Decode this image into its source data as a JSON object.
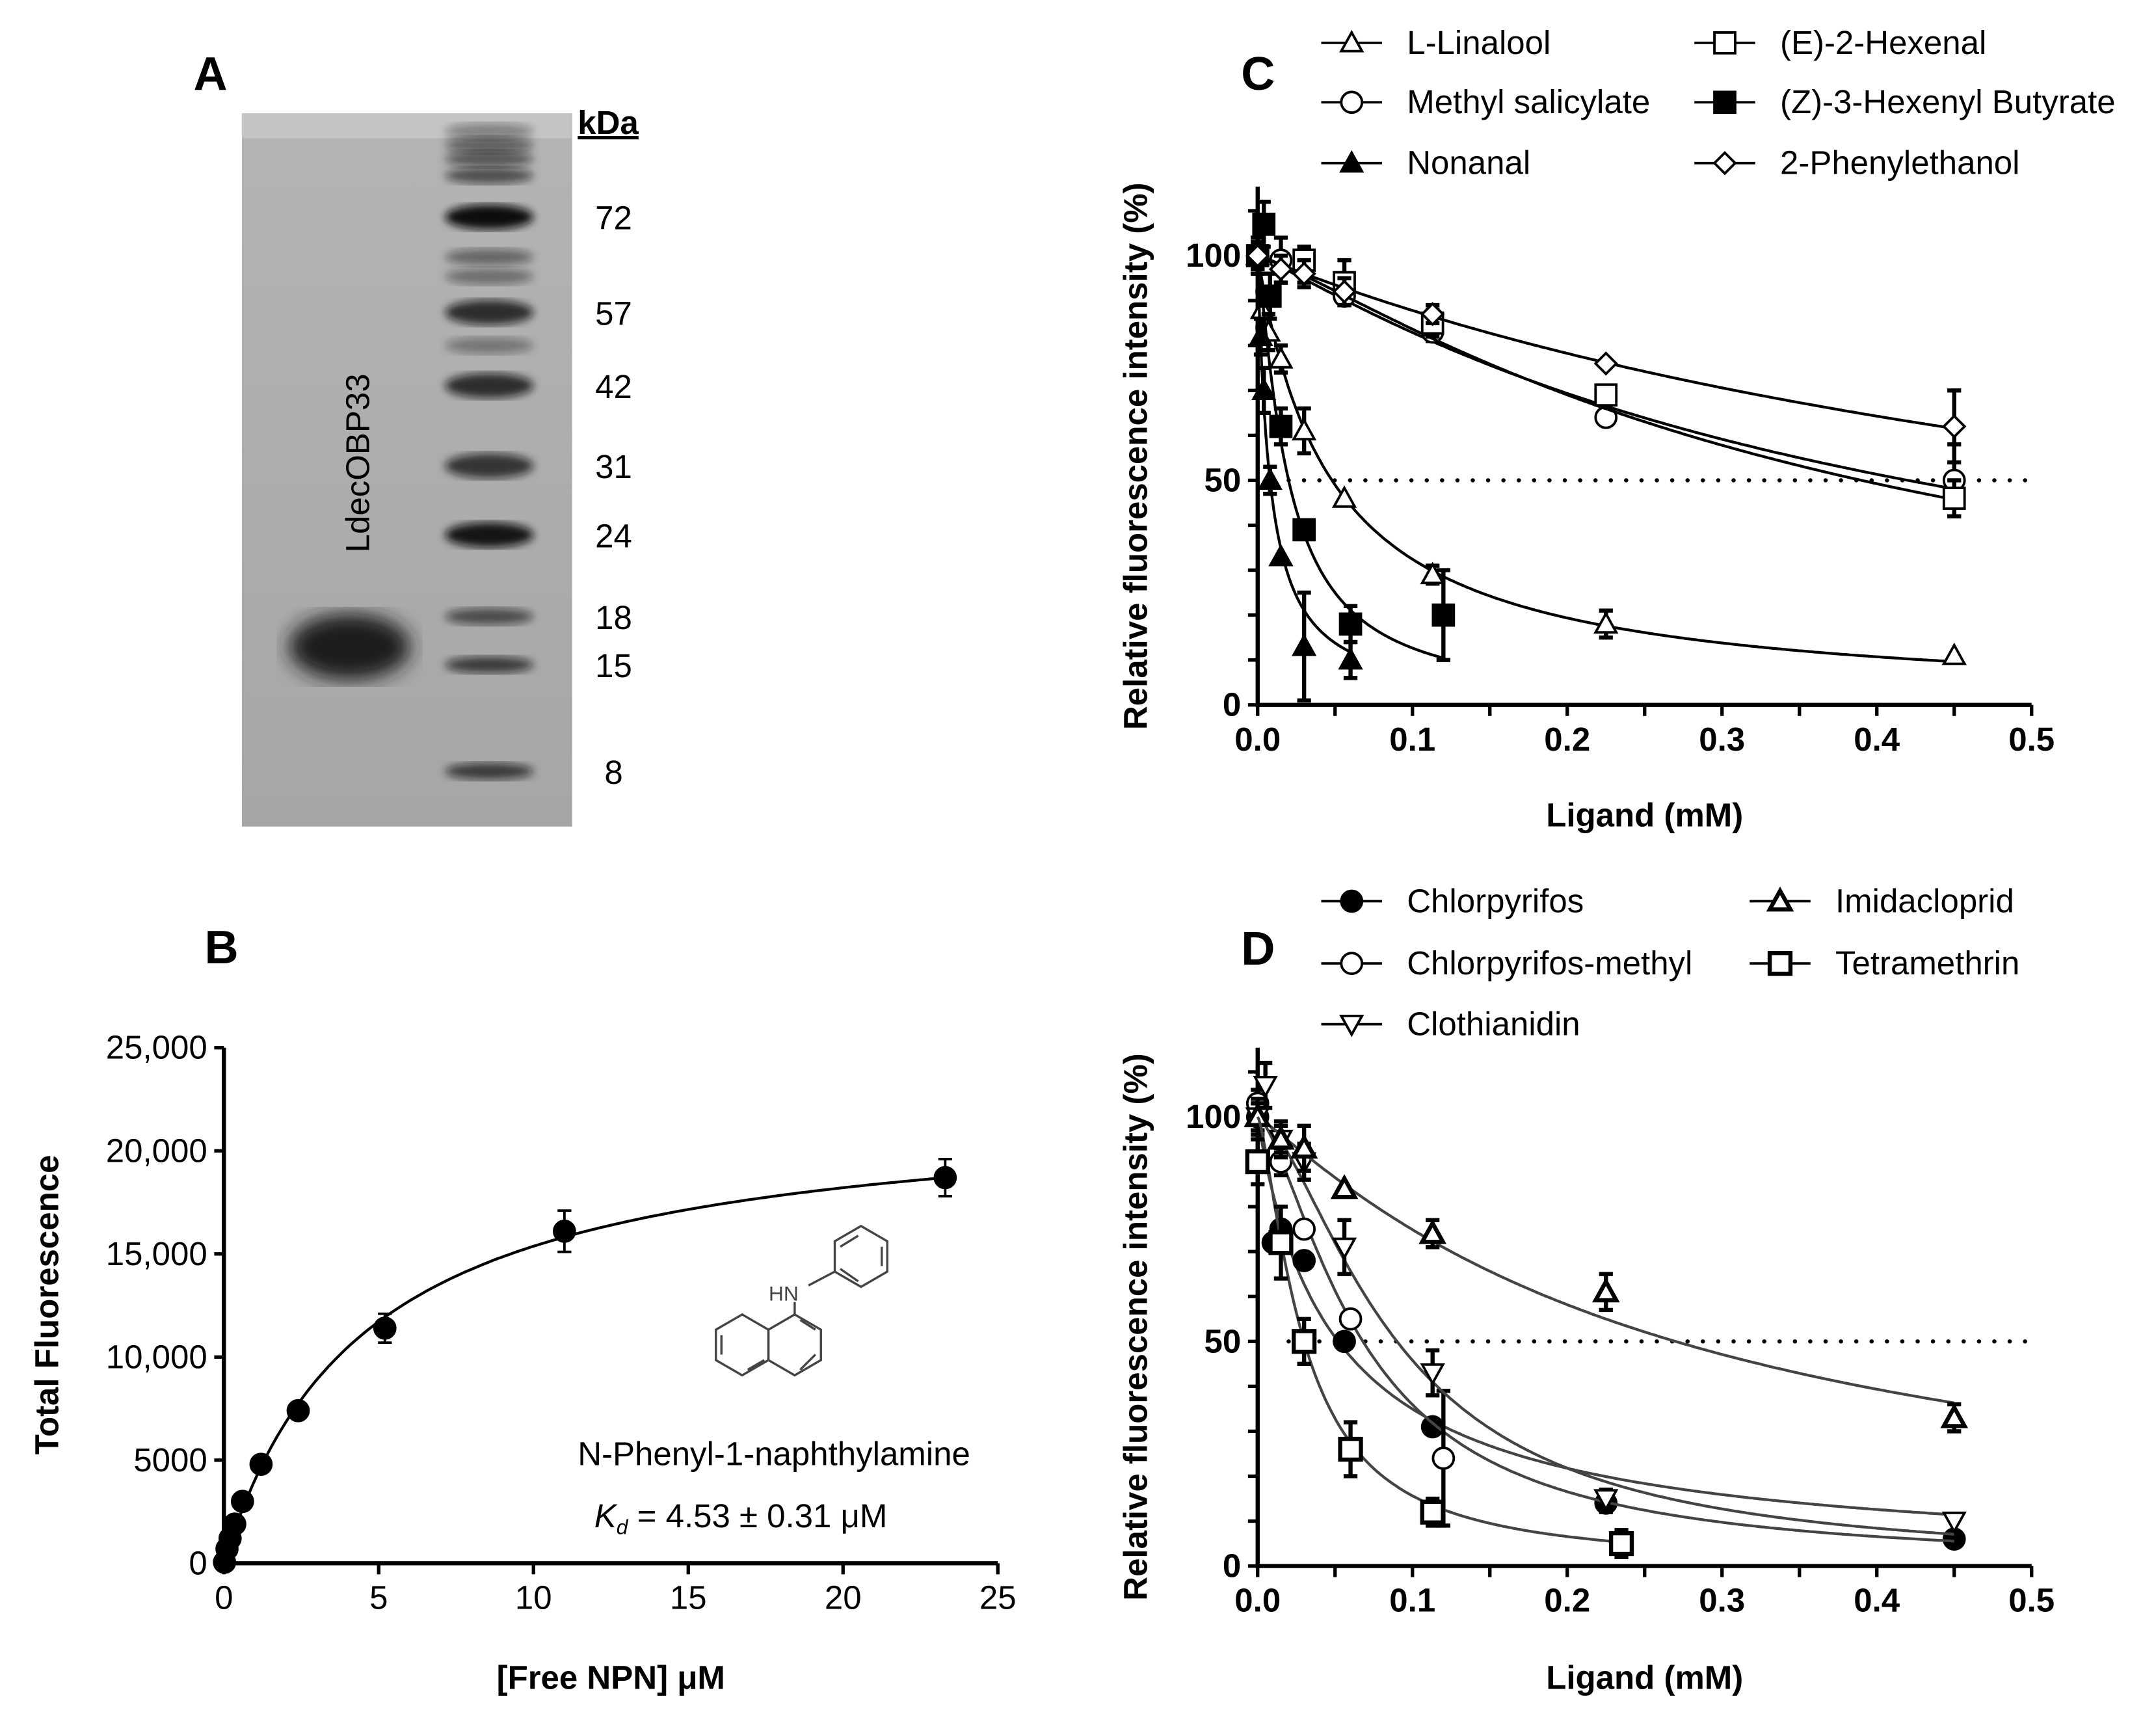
{
  "panel_labels": {
    "a": "A",
    "b": "B",
    "c": "C",
    "d": "D"
  },
  "gel": {
    "unit_label": "kDa",
    "sample_label": "LdecOBP33",
    "markers": [
      "72",
      "57",
      "42",
      "31",
      "24",
      "18",
      "15",
      "8"
    ]
  },
  "chart_data": [
    {
      "panel": "B",
      "type": "scatter",
      "xlabel": "[Free NPN] μM",
      "ylabel": "Total Fluorescence",
      "xlim": [
        0,
        25
      ],
      "ylim": [
        0,
        25000
      ],
      "xticks": [
        "0",
        "5",
        "10",
        "15",
        "20",
        "25"
      ],
      "yticks": [
        "0",
        "5000",
        "10,000",
        "15,000",
        "20,000",
        "25,000"
      ],
      "compound_label": "N-Phenyl-1-naphthylamine",
      "kd_symbol": "K",
      "kd_sub": "d",
      "kd_text": " = 4.53 ± 0.31 μM",
      "fit": {
        "bmax": 22336,
        "kd": 4.53
      },
      "series": [
        {
          "name": "NPN",
          "marker": "circle-filled",
          "x": [
            0.02,
            0.1,
            0.2,
            0.35,
            0.6,
            1.2,
            2.4,
            5.2,
            11.0,
            23.3
          ],
          "y": [
            50,
            700,
            1200,
            1900,
            3000,
            4800,
            7400,
            11400,
            16100,
            18700
          ],
          "err": [
            0,
            0,
            0,
            0,
            0,
            0,
            0,
            700,
            1000,
            900
          ]
        }
      ]
    },
    {
      "panel": "C",
      "type": "line",
      "xlabel": "Ligand (mM)",
      "ylabel": "Relative fluorescence intensity (%)",
      "xlim": [
        0,
        0.5
      ],
      "ylim": [
        0,
        115
      ],
      "xticks": [
        "0.0",
        "0.1",
        "0.2",
        "0.3",
        "0.4",
        "0.5"
      ],
      "yticks": [
        "0",
        "50",
        "100"
      ],
      "reference_line": 50,
      "legend_position": "top",
      "series": [
        {
          "name": "L-Linalool",
          "marker": "triangle-up-open",
          "x": [
            0.003,
            0.007,
            0.015,
            0.03,
            0.056,
            0.113,
            0.225,
            0.45
          ],
          "y": [
            88,
            83,
            77,
            61,
            46,
            29,
            18,
            11
          ],
          "err": [
            4,
            4,
            3,
            5,
            0,
            2,
            3,
            0
          ],
          "fit": {
            "top": 100,
            "ic50": 0.048,
            "hill": 1.0,
            "xmax": 0.45
          }
        },
        {
          "name": "Methyl salicylate",
          "marker": "circle-open",
          "x": [
            0,
            0.015,
            0.03,
            0.056,
            0.113,
            0.225,
            0.45
          ],
          "y": [
            100,
            99,
            98,
            91,
            83,
            64,
            50
          ],
          "err": [
            3,
            5,
            4,
            2,
            2,
            0,
            8
          ],
          "fit": {
            "top": 100,
            "ic50": 0.42,
            "hill": 1.1,
            "xmax": 0.45
          }
        },
        {
          "name": "Nonanal",
          "marker": "triangle-up-filled",
          "x": [
            0,
            0.002,
            0.004,
            0.008,
            0.015,
            0.03,
            0.06
          ],
          "y": [
            100,
            82,
            70,
            50,
            33,
            13,
            10
          ],
          "err": [
            4,
            4,
            5,
            3,
            0,
            12,
            4
          ],
          "fit": {
            "top": 100,
            "ic50": 0.008,
            "hill": 1.0,
            "xmax": 0.06
          }
        },
        {
          "name": "(E)-2-Hexenal",
          "marker": "square-open",
          "x": [
            0,
            0.03,
            0.056,
            0.113,
            0.225,
            0.45
          ],
          "y": [
            100,
            99,
            94,
            85,
            69,
            46
          ],
          "err": [
            3,
            3,
            5,
            3,
            2,
            4
          ],
          "fit": {
            "top": 100,
            "ic50": 0.39,
            "hill": 1.2,
            "xmax": 0.45
          }
        },
        {
          "name": "(Z)-3-Hexenyl Butyrate",
          "marker": "square-filled",
          "x": [
            0,
            0.004,
            0.008,
            0.015,
            0.03,
            0.06,
            0.12
          ],
          "y": [
            100,
            107,
            91,
            62,
            39,
            18,
            20
          ],
          "err": [
            4,
            5,
            5,
            4,
            0,
            4,
            10
          ],
          "fit": {
            "top": 100,
            "ic50": 0.02,
            "hill": 1.2,
            "xmax": 0.12
          }
        },
        {
          "name": "2-Phenylethanol",
          "marker": "diamond-open",
          "x": [
            0,
            0.015,
            0.03,
            0.056,
            0.113,
            0.225,
            0.45
          ],
          "y": [
            100,
            97,
            96,
            92,
            87,
            76,
            62
          ],
          "err": [
            3,
            3,
            3,
            3,
            2,
            0,
            8
          ],
          "fit": {
            "top": 100,
            "ic50": 0.72,
            "hill": 1.0,
            "xmax": 0.45
          }
        }
      ]
    },
    {
      "panel": "D",
      "type": "line",
      "xlabel": "Ligand (mM)",
      "ylabel": "Relative fluorescence intensity (%)",
      "xlim": [
        0,
        0.5
      ],
      "ylim": [
        0,
        115
      ],
      "xticks": [
        "0.0",
        "0.1",
        "0.2",
        "0.3",
        "0.4",
        "0.5"
      ],
      "yticks": [
        "0",
        "50",
        "100"
      ],
      "reference_line": 50,
      "legend_position": "top",
      "series": [
        {
          "name": "Chlorpyrifos",
          "marker": "circle-filled",
          "x": [
            0,
            0.01,
            0.015,
            0.03,
            0.056,
            0.113,
            0.225,
            0.45
          ],
          "y": [
            100,
            72,
            75,
            68,
            50,
            31,
            14,
            6
          ],
          "err": [
            3,
            0,
            0,
            0,
            0,
            0,
            2,
            0
          ],
          "fit": {
            "top": 100,
            "ic50": 0.052,
            "hill": 0.95,
            "xmax": 0.45
          }
        },
        {
          "name": "Chlorpyrifos-methyl",
          "marker": "circle-open",
          "x": [
            0,
            0.015,
            0.03,
            0.06,
            0.12
          ],
          "y": [
            103,
            90,
            75,
            55,
            24
          ],
          "err": [
            3,
            3,
            0,
            0,
            15
          ],
          "fit": {
            "top": 100,
            "ic50": 0.068,
            "hill": 1.5,
            "xmax": 0.45
          }
        },
        {
          "name": "Clothianidin",
          "marker": "triangle-down-open",
          "x": [
            0,
            0.005,
            0.015,
            0.03,
            0.056,
            0.113,
            0.225,
            0.45
          ],
          "y": [
            100,
            107,
            95,
            90,
            71,
            43,
            15,
            10
          ],
          "err": [
            4,
            5,
            3,
            4,
            6,
            5,
            2,
            0
          ],
          "fit": {
            "top": 100,
            "ic50": 0.09,
            "hill": 1.6,
            "xmax": 0.45
          }
        },
        {
          "name": "Imidacloprid",
          "marker": "triangle-up-bold",
          "x": [
            0,
            0.015,
            0.03,
            0.056,
            0.113,
            0.225,
            0.45
          ],
          "y": [
            100,
            95,
            93,
            84,
            74,
            61,
            33
          ],
          "err": [
            3,
            4,
            5,
            0,
            3,
            4,
            3
          ],
          "fit": {
            "top": 100,
            "ic50": 0.27,
            "hill": 1.1,
            "xmax": 0.45
          }
        },
        {
          "name": "Tetramethrin",
          "marker": "square-bold",
          "x": [
            0,
            0.015,
            0.03,
            0.06,
            0.113,
            0.235
          ],
          "y": [
            90,
            72,
            50,
            26,
            12,
            5
          ],
          "err": [
            5,
            8,
            5,
            6,
            3,
            3
          ],
          "fit": {
            "top": 100,
            "ic50": 0.03,
            "hill": 1.4,
            "xmax": 0.24
          }
        }
      ]
    }
  ]
}
